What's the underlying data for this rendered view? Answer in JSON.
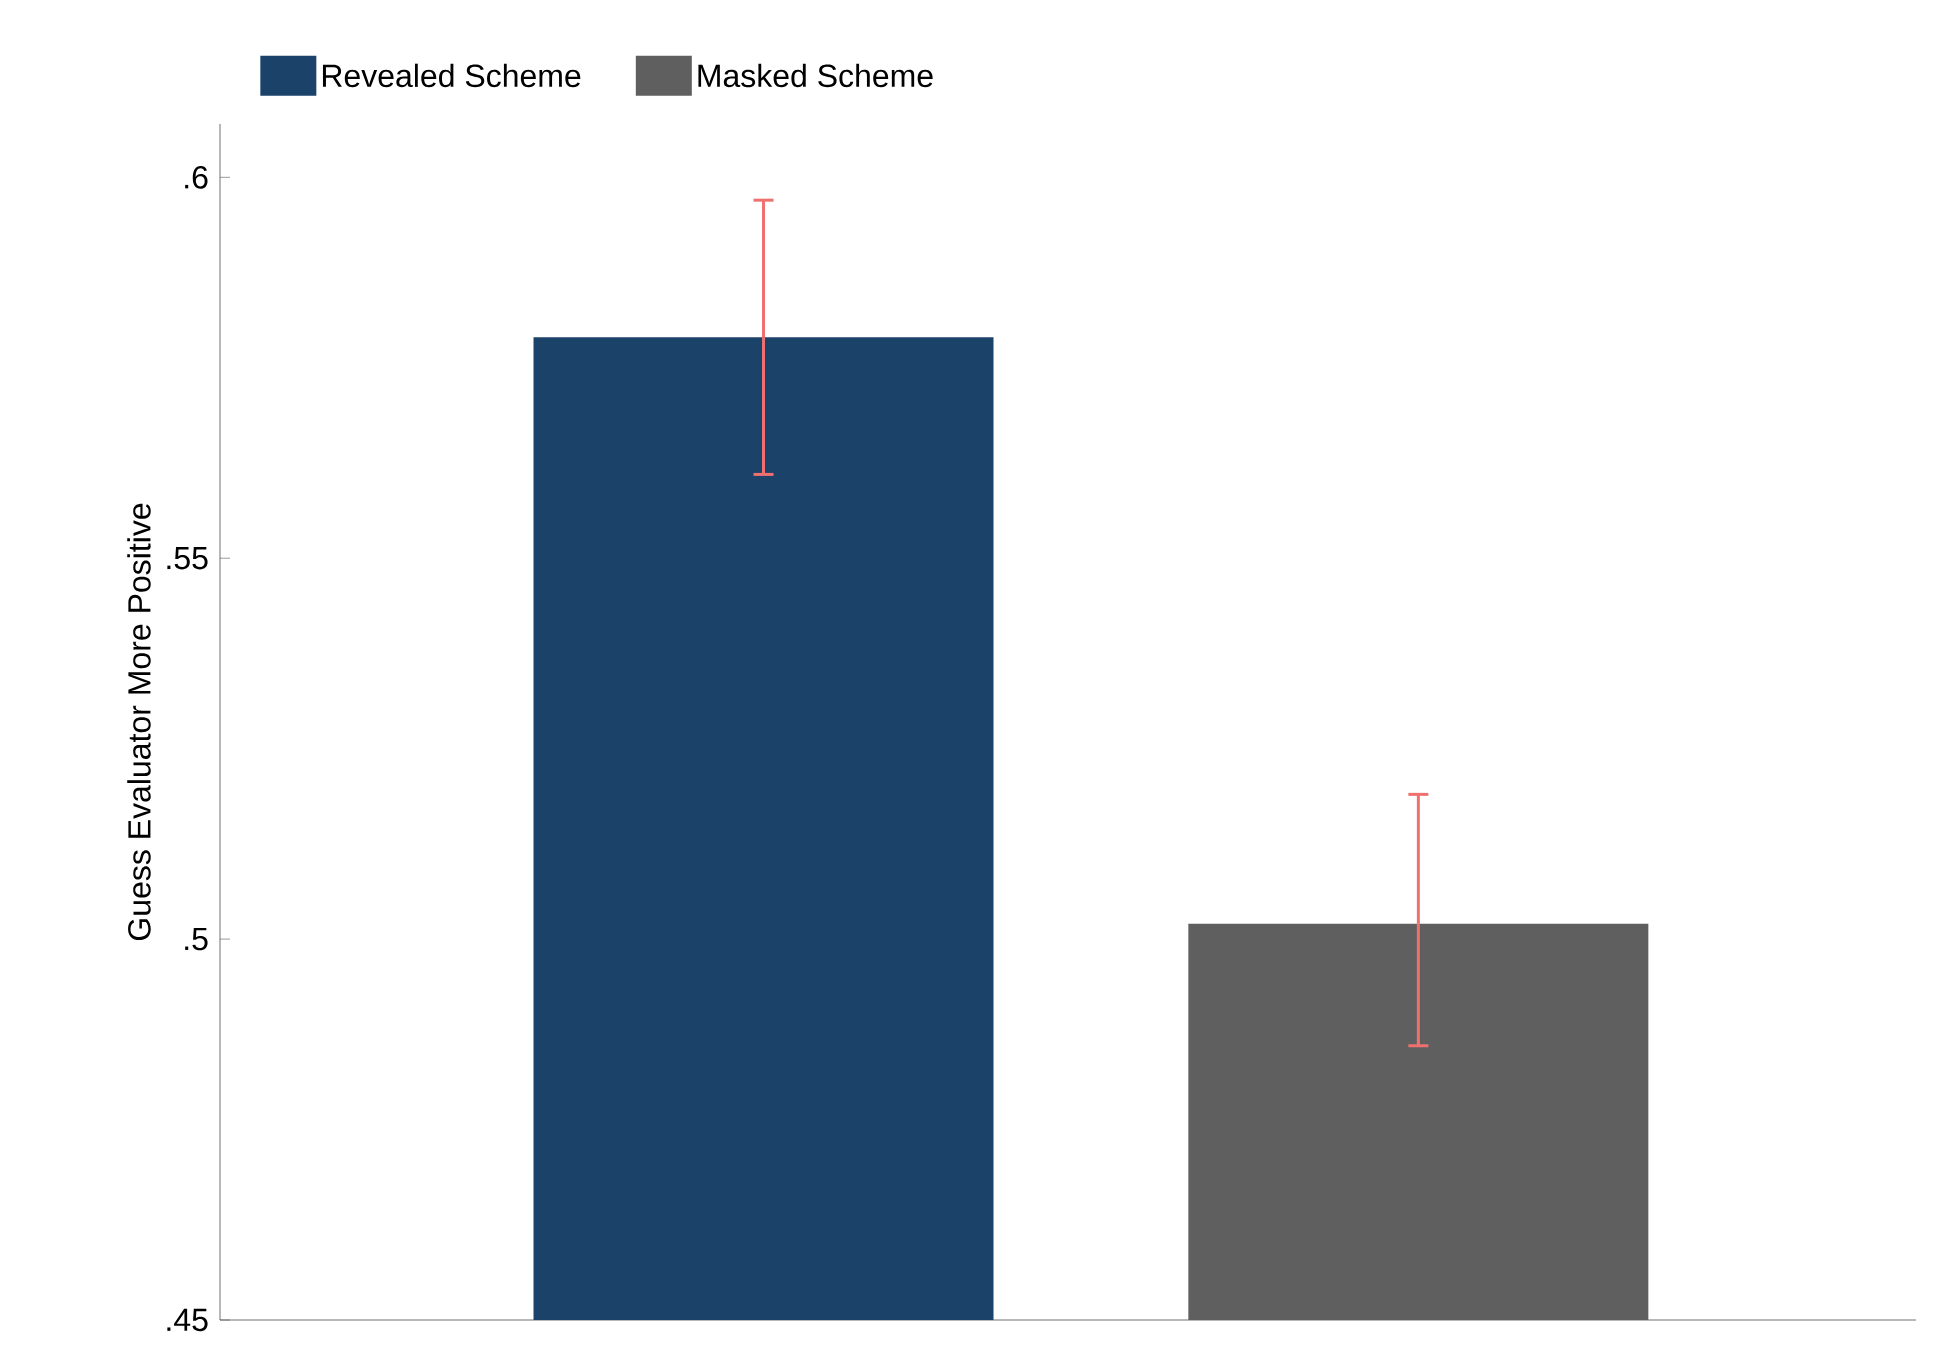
{
  "chart_data": {
    "type": "bar",
    "ylabel": "Guess Evaluator More Positive",
    "categories": [
      null,
      null
    ],
    "series": [
      {
        "name": "Revealed Scheme",
        "color": "#1b4369",
        "values": [
          0.579,
          null
        ],
        "errors": [
          [
            0.561,
            0.597
          ],
          null
        ]
      },
      {
        "name": "Masked Scheme",
        "color": "#5f5f5f",
        "values": [
          null,
          0.502
        ],
        "errors": [
          null,
          [
            0.486,
            0.519
          ]
        ]
      }
    ],
    "ylim": [
      0.45,
      0.607
    ],
    "yticks": [
      {
        "value": 0.45,
        "label": ".45"
      },
      {
        "value": 0.5,
        "label": ".5"
      },
      {
        "value": 0.55,
        "label": ".55"
      },
      {
        "value": 0.6,
        "label": ".6"
      }
    ],
    "grid": false,
    "legend": "top"
  }
}
